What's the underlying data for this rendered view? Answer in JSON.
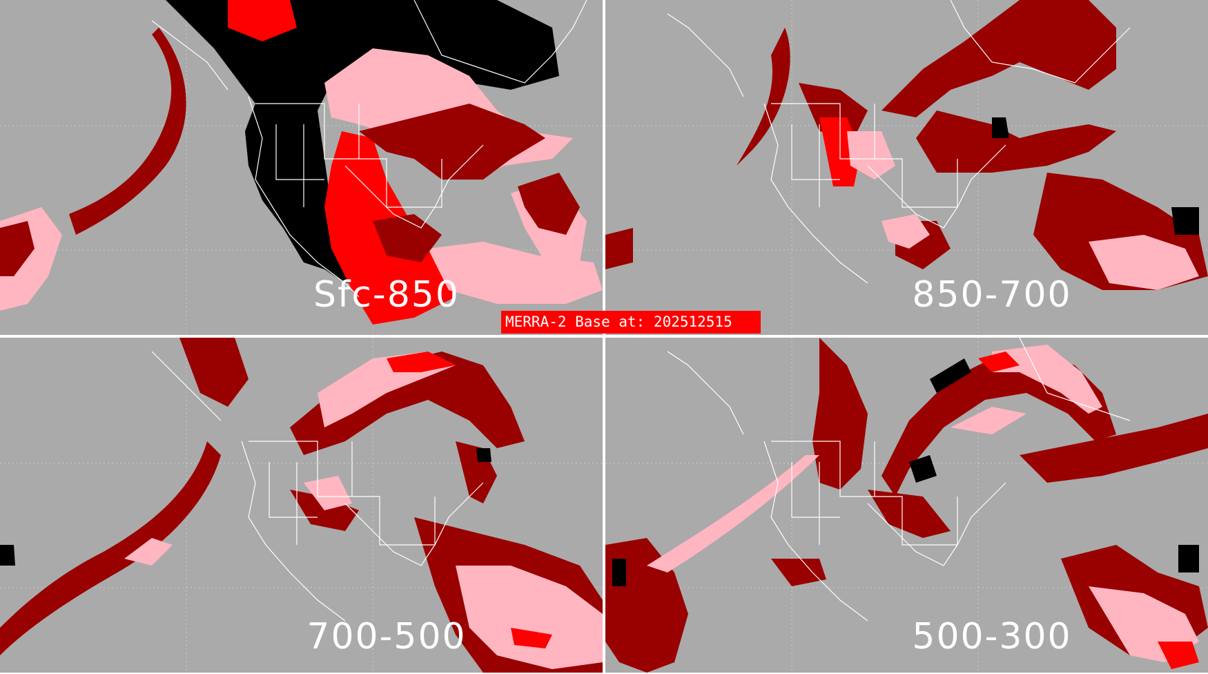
{
  "colors": {
    "ocean": "#aaaaaa",
    "divider": "#ffffff",
    "dark_red": "#990000",
    "red": "#ff0000",
    "pink": "#ffb6c1",
    "black": "#000000",
    "coast": "#ffffff"
  },
  "banner": {
    "text": "MERRA-2 Base at: 202512515"
  },
  "panels": [
    {
      "id": "tl",
      "label": "Sfc-850"
    },
    {
      "id": "tr",
      "label": "850-700"
    },
    {
      "id": "bl",
      "label": "700-500"
    },
    {
      "id": "br",
      "label": "500-300"
    }
  ]
}
